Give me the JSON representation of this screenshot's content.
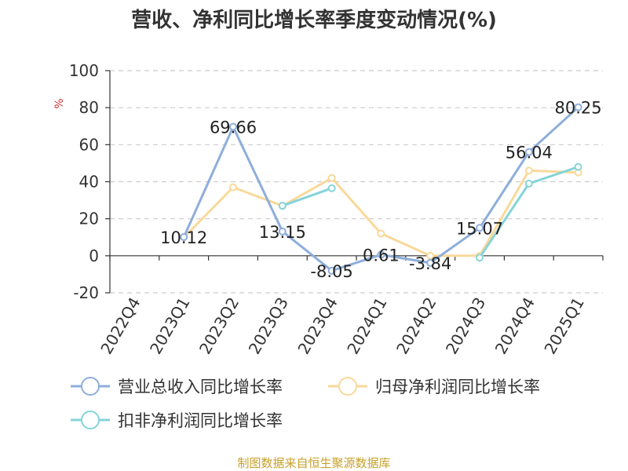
{
  "chart_data": {
    "type": "line",
    "title": "营收、净利同比增长率季度变动情况(%)",
    "ylabel": "%",
    "ylim": [
      -20,
      100
    ],
    "yticks": [
      -20,
      0,
      20,
      40,
      60,
      80,
      100
    ],
    "grid": true,
    "legend_position": "bottom",
    "categories": [
      "2022Q4",
      "2023Q1",
      "2023Q2",
      "2023Q3",
      "2023Q4",
      "2024Q1",
      "2024Q2",
      "2024Q3",
      "2024Q4",
      "2025Q1"
    ],
    "series": [
      {
        "name": "营业总收入同比增长率",
        "color": "#8eaedb",
        "values": [
          null,
          10.12,
          69.66,
          13.15,
          -8.05,
          0.61,
          -3.84,
          15.07,
          56.04,
          80.25
        ],
        "labels": [
          null,
          "10.12",
          "69.66",
          "13.15",
          "-8.05",
          "0.61",
          "-3.84",
          "15.07",
          "56.04",
          "80.25"
        ]
      },
      {
        "name": "归母净利润同比增长率",
        "color": "#f9d99a",
        "values": [
          null,
          10,
          37,
          27,
          42,
          12,
          0,
          0,
          46,
          45
        ]
      },
      {
        "name": "扣非净利润同比增长率",
        "color": "#86d4d9",
        "values": [
          null,
          null,
          null,
          27,
          36.5,
          null,
          null,
          -1,
          39,
          48
        ]
      }
    ]
  },
  "source": "制图数据来自恒生聚源数据库"
}
